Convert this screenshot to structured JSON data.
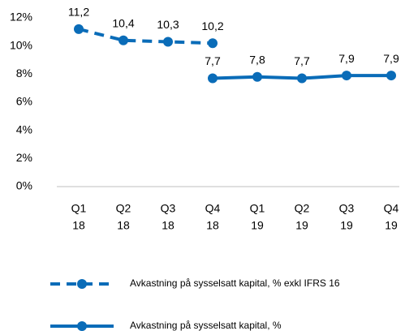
{
  "chart_data": {
    "type": "line",
    "categories": [
      [
        "Q1",
        "18"
      ],
      [
        "Q2",
        "18"
      ],
      [
        "Q3",
        "18"
      ],
      [
        "Q4",
        "18"
      ],
      [
        "Q1",
        "19"
      ],
      [
        "Q2",
        "19"
      ],
      [
        "Q3",
        "19"
      ],
      [
        "Q4",
        "19"
      ]
    ],
    "series": [
      {
        "name": "Avkastning på sysselsatt kapital, % exkl IFRS 16",
        "color": "#0a6cb8",
        "dashed": true,
        "values": [
          11.2,
          10.4,
          10.3,
          10.2,
          null,
          null,
          null,
          null
        ],
        "value_labels": [
          "11,2",
          "10,4",
          "10,3",
          "10,2",
          null,
          null,
          null,
          null
        ]
      },
      {
        "name": "Avkastning på sysselsatt kapital, %",
        "color": "#0a6cb8",
        "dashed": false,
        "values": [
          null,
          null,
          null,
          7.7,
          7.8,
          7.7,
          7.9,
          7.9
        ],
        "value_labels": [
          null,
          null,
          null,
          "7,7",
          "7,8",
          "7,7",
          "7,9",
          "7,9"
        ]
      }
    ],
    "ylim": [
      0,
      12
    ],
    "yticks": [
      {
        "value": 0,
        "label": "0%"
      },
      {
        "value": 2,
        "label": "2%"
      },
      {
        "value": 4,
        "label": "4%"
      },
      {
        "value": 6,
        "label": "6%"
      },
      {
        "value": 8,
        "label": "8%"
      },
      {
        "value": 10,
        "label": "10%"
      },
      {
        "value": 12,
        "label": "12%"
      }
    ],
    "grid": false,
    "legend": "bottom"
  }
}
